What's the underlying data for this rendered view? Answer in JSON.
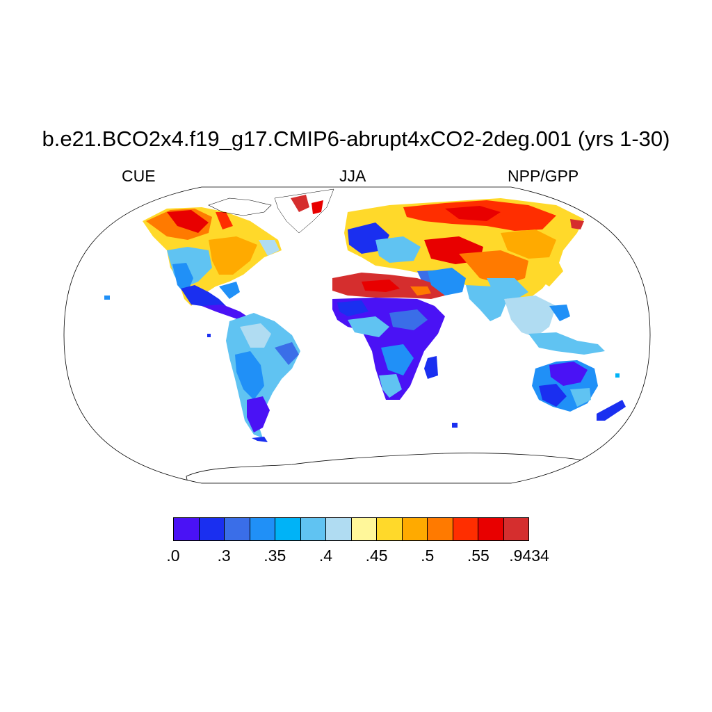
{
  "title": "b.e21.BCO2x4.f19_g17.CMIP6-abrupt4xCO2-2deg.001 (yrs 1-30)",
  "subtitle_left": "CUE",
  "subtitle_center": "JJA",
  "subtitle_right": "NPP/GPP",
  "colorbar": {
    "colors": [
      "#4a12f5",
      "#1a2ff0",
      "#3a6ee8",
      "#2090f7",
      "#00b3f7",
      "#60c3f2",
      "#b0dcf2",
      "#fff79a",
      "#ffd92a",
      "#ffaa00",
      "#ff7a00",
      "#ff2e00",
      "#e80000",
      "#d52e2e"
    ],
    "labels": [
      ".0",
      ".3",
      ".35",
      ".4",
      ".45",
      ".5",
      ".55",
      ".9434"
    ]
  }
}
